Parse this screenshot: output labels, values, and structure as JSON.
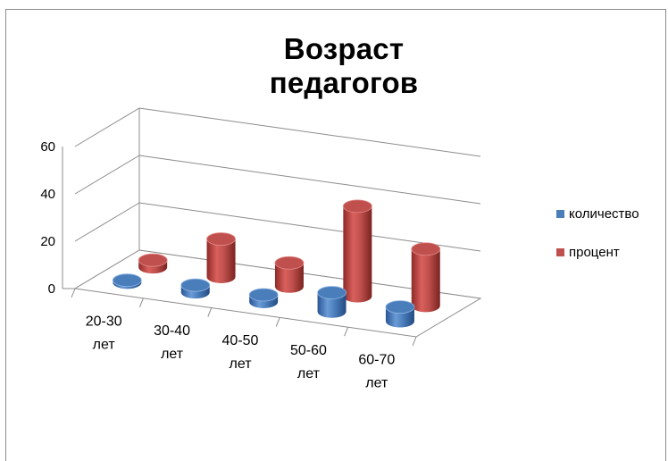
{
  "chart_data": {
    "type": "bar",
    "style": "3d-cylinder",
    "title": "Возраст педагогов",
    "categories": [
      [
        "20-30",
        "лет"
      ],
      [
        "30-40",
        "лет"
      ],
      [
        "40-50",
        "лет"
      ],
      [
        "50-60",
        "лет"
      ],
      [
        "60-70",
        "лет"
      ]
    ],
    "series": [
      {
        "name": "количество",
        "color": "#4a7ebb",
        "values": [
          1,
          3,
          3,
          8,
          6
        ]
      },
      {
        "name": "процент",
        "color": "#c0504d",
        "values": [
          3,
          16,
          10,
          38,
          24
        ]
      }
    ],
    "yticks": [
      "0",
      "20",
      "40",
      "60"
    ],
    "ylim": [
      0,
      60
    ],
    "grid": true,
    "legend_position": "right"
  }
}
